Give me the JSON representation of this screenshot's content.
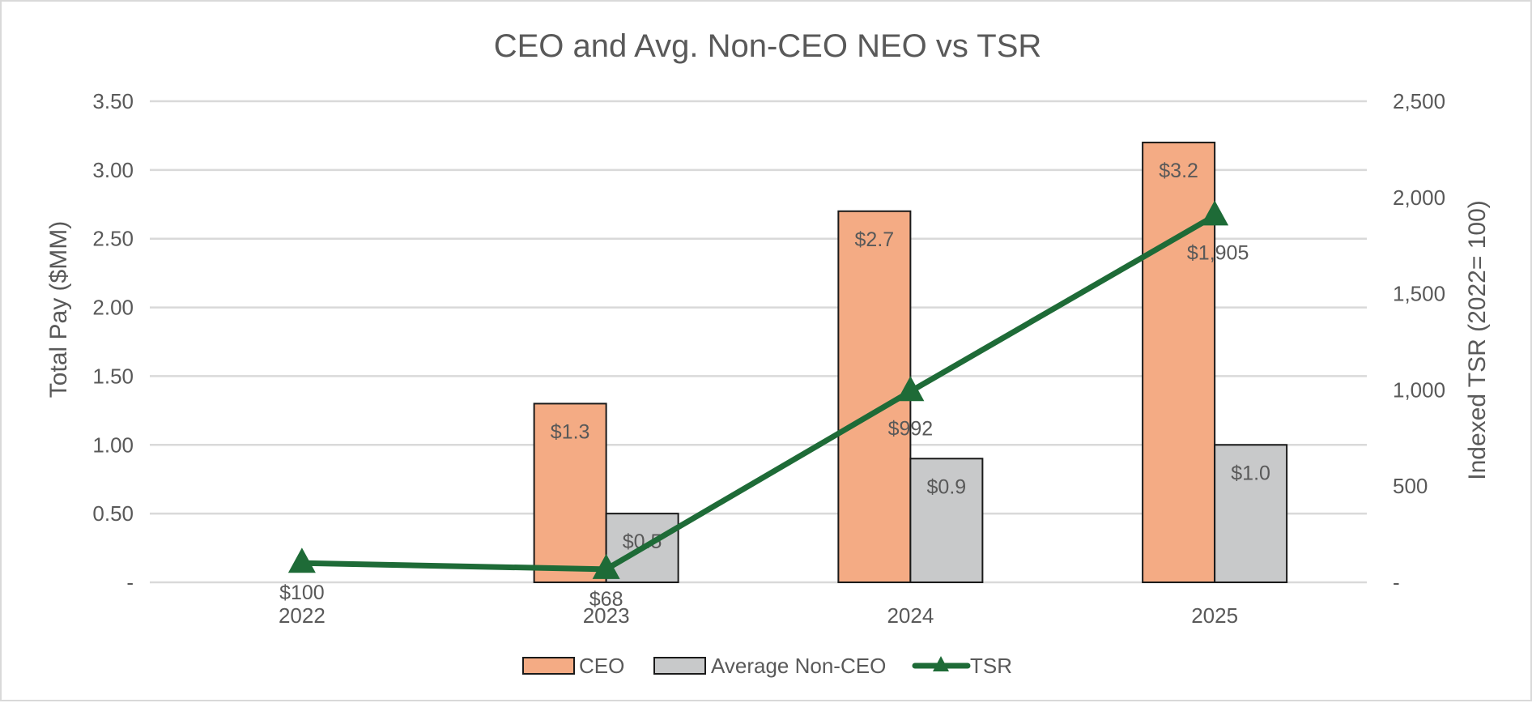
{
  "chart_data": {
    "type": "bar",
    "title": "CEO and Avg. Non-CEO NEO vs TSR",
    "categories": [
      "2022",
      "2023",
      "2024",
      "2025"
    ],
    "ylabel": "Total Pay ($MM)",
    "ylim": [
      0,
      3.5
    ],
    "yticks": [
      "-",
      "0.50",
      "1.00",
      "1.50",
      "2.00",
      "2.50",
      "3.00",
      "3.50"
    ],
    "y2label": "Indexed TSR (2022= 100)",
    "y2lim": [
      0,
      2500
    ],
    "y2ticks": [
      "-",
      "500",
      "1,000",
      "1,500",
      "2,000",
      "2,500"
    ],
    "grid": true,
    "legend_position": "bottom",
    "series": [
      {
        "name": "CEO",
        "type": "bar",
        "axis": "left",
        "color": "#F4AB84",
        "values": [
          null,
          1.3,
          2.7,
          3.2
        ],
        "labels": [
          "",
          "$1.3",
          "$2.7",
          "$3.2"
        ]
      },
      {
        "name": "Average Non-CEO",
        "type": "bar",
        "axis": "left",
        "color": "#C8C9CA",
        "values": [
          null,
          0.5,
          0.9,
          1.0
        ],
        "labels": [
          "",
          "$0.5",
          "$0.9",
          "$1.0"
        ]
      },
      {
        "name": "TSR",
        "type": "line",
        "axis": "right",
        "color": "#1E6B37",
        "marker": "triangle",
        "values": [
          100,
          68,
          992,
          1905
        ],
        "labels": [
          "$100",
          "$68",
          "$992",
          "$1,905"
        ]
      }
    ]
  }
}
